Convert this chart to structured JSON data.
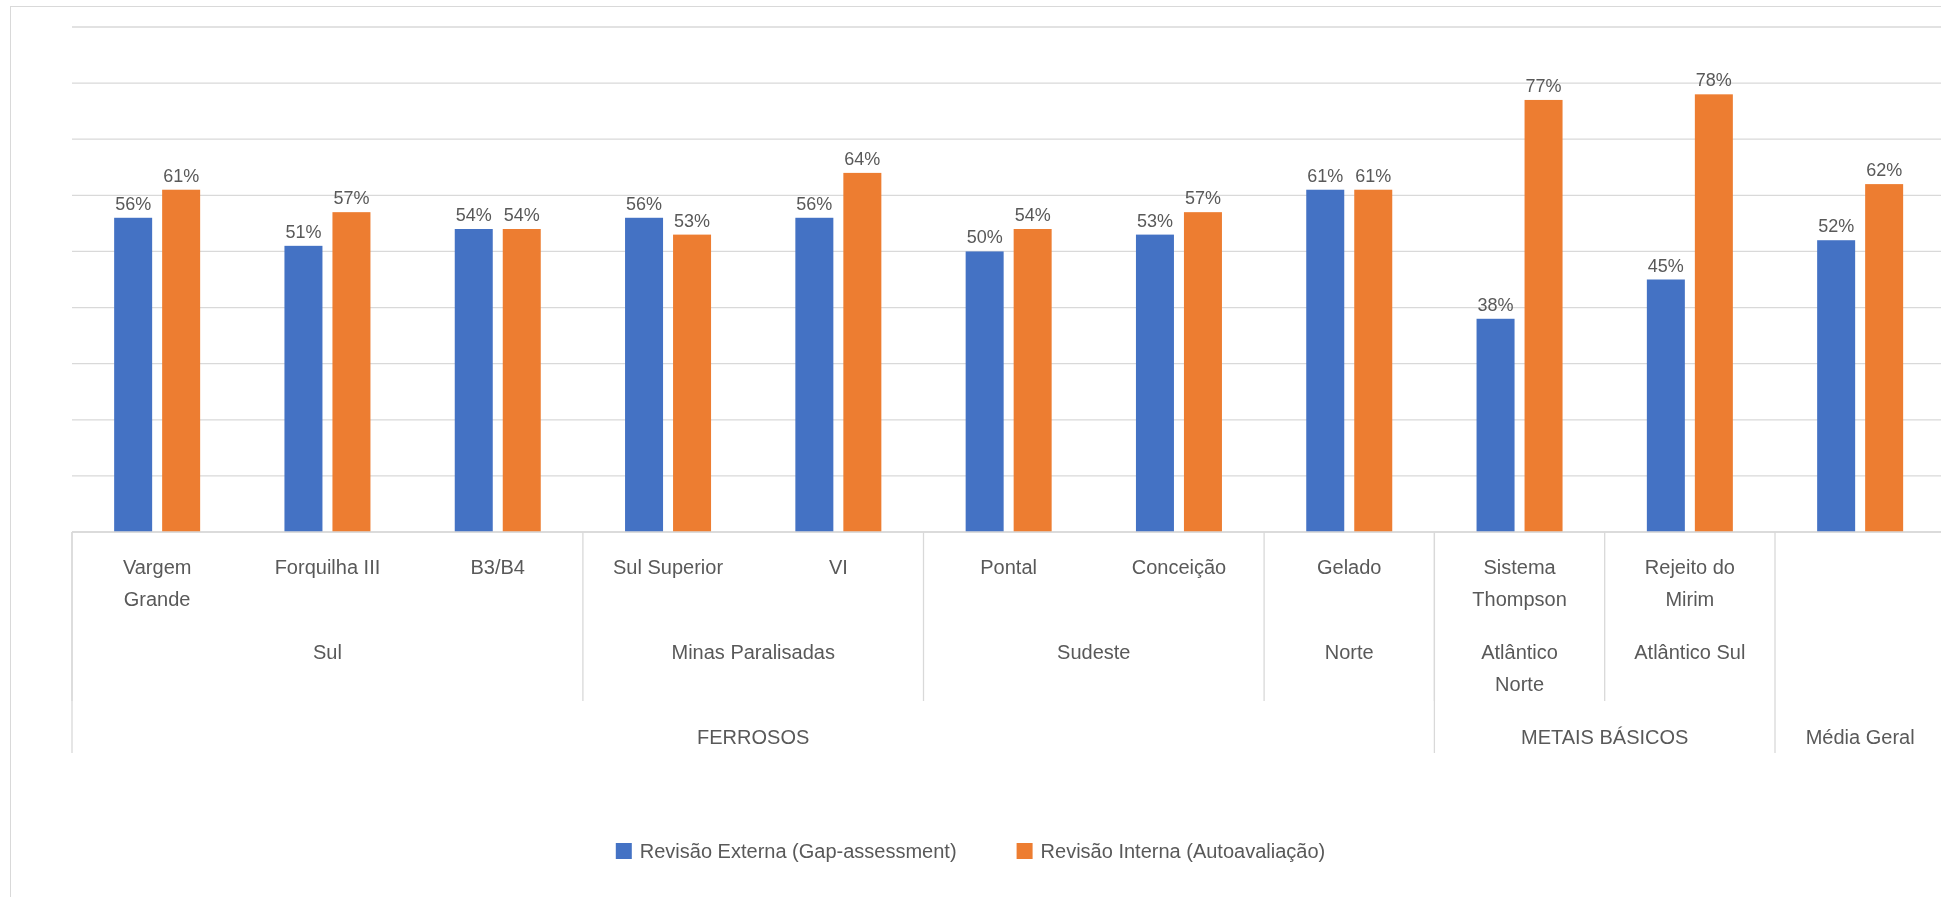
{
  "chart_data": {
    "type": "bar",
    "categories": [
      "Vargem Grande",
      "Forquilha III",
      "B3/B4",
      "Sul Superior",
      "VI",
      "Pontal",
      "Conceição",
      "Gelado",
      "Sistema Thompson",
      "Rejeito do Mirim",
      null
    ],
    "series": [
      {
        "name": "Revisão Externa (Gap-assessment)",
        "color": "#4472c4",
        "values": [
          56,
          51,
          54,
          56,
          56,
          50,
          53,
          61,
          38,
          45,
          52
        ],
        "value_labels": [
          "56%",
          "51%",
          "54%",
          "56%",
          "56%",
          "50%",
          "53%",
          "61%",
          "38%",
          "45%",
          "52%"
        ]
      },
      {
        "name": "Revisão Interna (Autoavaliação)",
        "color": "#ed7d31",
        "values": [
          61,
          57,
          54,
          53,
          64,
          54,
          57,
          61,
          77,
          78,
          62
        ],
        "value_labels": [
          "61%",
          "57%",
          "54%",
          "53%",
          "64%",
          "54%",
          "57%",
          "61%",
          "77%",
          "78%",
          "62%"
        ]
      }
    ],
    "ylim": [
      0,
      90
    ],
    "yticks": [
      {
        "value": 0,
        "label": null
      },
      {
        "value": 10,
        "label": null
      },
      {
        "value": 20,
        "label": null
      },
      {
        "value": 30,
        "label": null
      },
      {
        "value": 40,
        "label": null
      },
      {
        "value": 50,
        "label": null
      },
      {
        "value": 60,
        "label": null
      },
      {
        "value": 70,
        "label": null
      },
      {
        "value": 80,
        "label": null
      },
      {
        "value": 90,
        "label": null
      }
    ],
    "grid": "y",
    "legend": "bottom",
    "annotations": [
      "Sul",
      "Minas Paralisadas",
      "Sudeste",
      "Norte",
      "Atlântico Norte",
      "Atlântico Sul",
      "FERROSOS",
      "METAIS BÁSICOS",
      "Média Geral"
    ]
  }
}
